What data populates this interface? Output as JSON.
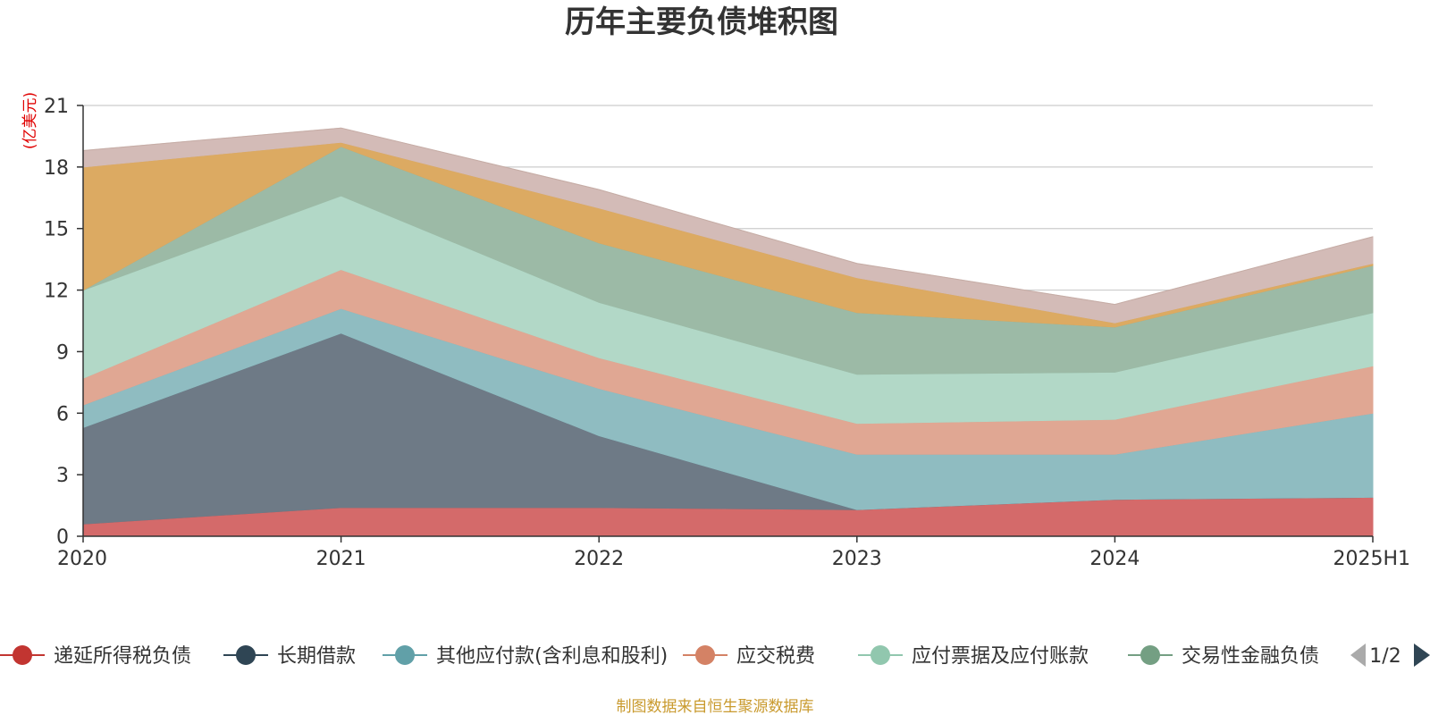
{
  "footer": {
    "source_label": "制图数据来自恒生聚源数据库"
  },
  "colors": {
    "title": "#333333",
    "unit_label": "#e00000",
    "source": "#c99a2e",
    "grid": "#cccccc",
    "axis": "#333333"
  },
  "chart_data": {
    "type": "area",
    "stacked": true,
    "title": "历年主要负债堆积图",
    "ylabel": "亿美元",
    "categories": [
      "2020",
      "2021",
      "2022",
      "2023",
      "2024",
      "2025H1"
    ],
    "ylim": [
      0,
      21
    ],
    "yticks": [
      0,
      3,
      6,
      9,
      12,
      15,
      18,
      21
    ],
    "grid": true,
    "legend_position": "bottom",
    "legend_page": "1/2",
    "series": [
      {
        "name": "递延所得税负债",
        "color": "#d46a6a",
        "legend_color": "#c23531",
        "values": [
          0.6,
          1.4,
          1.4,
          1.3,
          1.8,
          1.9
        ]
      },
      {
        "name": "长期借款",
        "color": "#6e7a86",
        "legend_color": "#2f4554",
        "values": [
          4.7,
          8.5,
          3.5,
          0.0,
          0.0,
          0.0
        ]
      },
      {
        "name": "其他应付款(含利息和股利)",
        "color": "#8fbcc1",
        "legend_color": "#61a0a8",
        "values": [
          1.1,
          1.2,
          2.3,
          2.7,
          2.2,
          4.1
        ]
      },
      {
        "name": "应交税费",
        "color": "#e0a793",
        "legend_color": "#d48265",
        "values": [
          1.3,
          1.9,
          1.5,
          1.5,
          1.7,
          2.3
        ]
      },
      {
        "name": "应付票据及应付账款",
        "color": "#b2d8c7",
        "legend_color": "#91c7ae",
        "values": [
          4.3,
          3.6,
          2.7,
          2.4,
          2.3,
          2.6
        ]
      },
      {
        "name": "交易性金融负债",
        "color": "#9cbaa6",
        "legend_color": "#749f83",
        "values": [
          0.0,
          2.4,
          2.9,
          3.0,
          2.2,
          2.3
        ]
      },
      {
        "name": "",
        "color": "#dcaa62",
        "legend_color": "#ca8622",
        "values": [
          6.0,
          0.2,
          1.7,
          1.7,
          0.2,
          0.1
        ]
      },
      {
        "name": "",
        "color": "#d3bbb7",
        "legend_color": "#bda29a",
        "values": [
          0.8,
          0.7,
          0.9,
          0.7,
          0.9,
          1.3
        ]
      }
    ]
  }
}
